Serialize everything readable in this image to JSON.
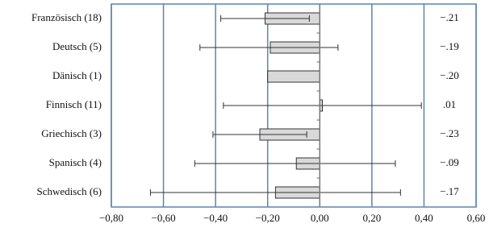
{
  "chart_data": {
    "type": "bar",
    "orientation": "horizontal",
    "categories": [
      "Französisch (18)",
      "Deutsch (5)",
      "Dänisch (1)",
      "Finnisch (11)",
      "Griechisch (3)",
      "Spanisch (4)",
      "Schwedisch (6)"
    ],
    "values": [
      -0.21,
      -0.19,
      -0.2,
      0.01,
      -0.23,
      -0.09,
      -0.17
    ],
    "value_labels": [
      "−.21",
      "−.19",
      "−.20",
      ".01",
      "−.23",
      "−.09",
      "−.17"
    ],
    "ci_low": [
      -0.38,
      -0.46,
      null,
      -0.37,
      -0.41,
      -0.48,
      -0.65
    ],
    "ci_high": [
      -0.04,
      0.07,
      null,
      0.39,
      -0.05,
      0.29,
      0.31
    ],
    "color": "#d9d9d9",
    "grid_color": "#5b84b1",
    "xlim": [
      -0.8,
      0.6
    ],
    "xticks": [
      {
        "value": -0.8,
        "label": "−0,80"
      },
      {
        "value": -0.6,
        "label": "−0,60"
      },
      {
        "value": -0.4,
        "label": "−0,40"
      },
      {
        "value": -0.2,
        "label": "−0,20"
      },
      {
        "value": 0,
        "label": "0,00"
      },
      {
        "value": 0.2,
        "label": "0,20"
      },
      {
        "value": 0.4,
        "label": "0,40"
      },
      {
        "value": 0.6,
        "label": "0,60"
      }
    ],
    "grid": true
  }
}
